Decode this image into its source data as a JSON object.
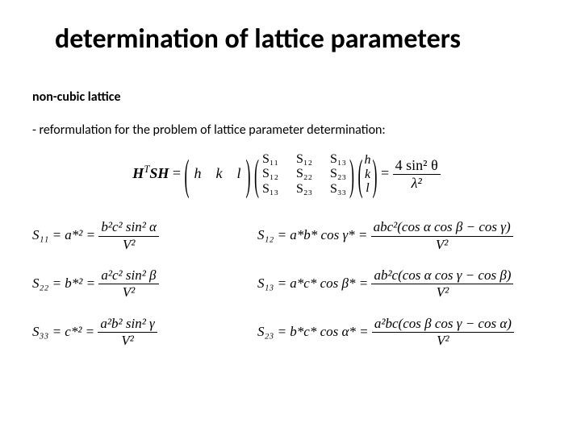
{
  "title": "determination of lattice parameters",
  "subtitle": "non-cubic lattice",
  "bullet": "-   reformulation for the problem of lattice parameter determination:",
  "mainEq": {
    "lhs": "H",
    "lhsSup": "T",
    "lhsSH": "SH",
    "hkl_row_h": "h",
    "hkl_row_k": "k",
    "hkl_row_l": "l",
    "S11": "S",
    "mat": [
      [
        "S₁₁",
        "S₁₂",
        "S₁₃"
      ],
      [
        "S₁₂",
        "S₂₂",
        "S₂₃"
      ],
      [
        "S₁₃",
        "S₂₃",
        "S₃₃"
      ]
    ],
    "colVec": [
      "h",
      "k",
      "l"
    ],
    "rhsNum": "4 sin² θ",
    "rhsDen": "λ²"
  },
  "eq": {
    "s11_lhs": "S₁₁ = a*² =",
    "s11_num": "b²c² sin² α",
    "s11_den": "V²",
    "s22_lhs": "S₂₂ = b*² =",
    "s22_num": "a²c² sin² β",
    "s22_den": "V²",
    "s33_lhs": "S₃₃ = c*² =",
    "s33_num": "a²b² sin² γ",
    "s33_den": "V²",
    "s12_lhs": "S₁₂ = a*b* cos γ* =",
    "s12_num": "abc²(cos α cos β − cos γ)",
    "s12_den": "V²",
    "s13_lhs": "S₁₃ = a*c* cos β* =",
    "s13_num": "ab²c(cos α cos γ − cos β)",
    "s13_den": "V²",
    "s23_lhs": "S₂₃ = b*c* cos α* =",
    "s23_num": "a²bc(cos β cos γ − cos α)",
    "s23_den": "V²"
  }
}
